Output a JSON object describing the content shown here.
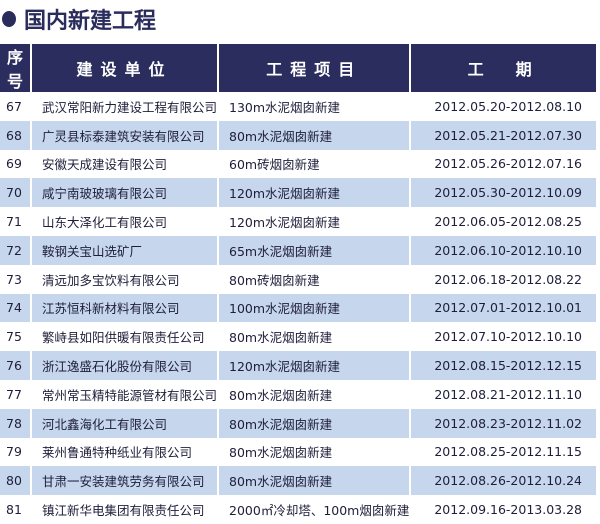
{
  "title": "国内新建工程",
  "headers": [
    "序号",
    "建设单位",
    "工程项目",
    "工　期"
  ],
  "rows": [
    {
      "no": "67",
      "unit": "武汉常阳新力建设工程有限公司",
      "project": "130m水泥烟囱新建",
      "period": "2012.05.20-2012.08.10"
    },
    {
      "no": "68",
      "unit": "广灵县标泰建筑安装有限公司",
      "project": "80m水泥烟囱新建",
      "period": "2012.05.21-2012.07.30"
    },
    {
      "no": "69",
      "unit": "安徽天成建设有限公司",
      "project": "60m砖烟囱新建",
      "period": "2012.05.26-2012.07.16"
    },
    {
      "no": "70",
      "unit": "咸宁南玻玻璃有限公司",
      "project": "120m水泥烟囱新建",
      "period": "2012.05.30-2012.10.09"
    },
    {
      "no": "71",
      "unit": "山东大泽化工有限公司",
      "project": "120m水泥烟囱新建",
      "period": "2012.06.05-2012.08.25"
    },
    {
      "no": "72",
      "unit": "鞍钢关宝山选矿厂",
      "project": "65m水泥烟囱新建",
      "period": "2012.06.10-2012.10.10"
    },
    {
      "no": "73",
      "unit": "清远加多宝饮料有限公司",
      "project": "80m砖烟囱新建",
      "period": "2012.06.18-2012.08.22"
    },
    {
      "no": "74",
      "unit": "江苏恒科新材料有限公司",
      "project": "100m水泥烟囱新建",
      "period": "2012.07.01-2012.10.01"
    },
    {
      "no": "75",
      "unit": "繁峙县如阳供暖有限责任公司",
      "project": "80m水泥烟囱新建",
      "period": "2012.07.10-2012.10.10"
    },
    {
      "no": "76",
      "unit": "浙江逸盛石化股份有限公司",
      "project": "120m水泥烟囱新建",
      "period": "2012.08.15-2012.12.15"
    },
    {
      "no": "77",
      "unit": "常州常玉精特能源管材有限公司",
      "project": "80m水泥烟囱新建",
      "period": "2012.08.21-2012.11.10"
    },
    {
      "no": "78",
      "unit": "河北鑫海化工有限公司",
      "project": "80m水泥烟囱新建",
      "period": "2012.08.23-2012.11.02"
    },
    {
      "no": "79",
      "unit": "莱州鲁通特种纸业有限公司",
      "project": "80m水泥烟囱新建",
      "period": "2012.08.25-2012.11.15"
    },
    {
      "no": "80",
      "unit": "甘肃一安装建筑劳务有限公司",
      "project": "80m水泥烟囱新建",
      "period": "2012.08.26-2012.10.24"
    },
    {
      "no": "81",
      "unit": "镇江新华电集团有限责任公司",
      "project": "2000㎡冷却塔、100m烟囱新建",
      "period": "2012.09.16-2013.03.28"
    }
  ],
  "colors": {
    "header": "#2b2d5e",
    "alt_row": "#c6d6ec"
  }
}
